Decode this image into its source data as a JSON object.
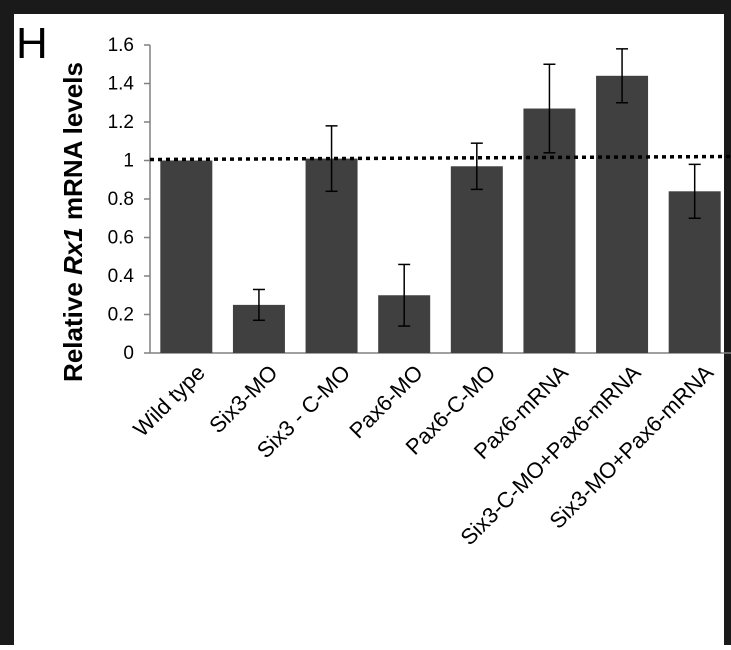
{
  "panel": {
    "letter": "H"
  },
  "chart_data": {
    "type": "bar",
    "title": "",
    "xlabel": "",
    "ylabel_parts": [
      "Relative ",
      "Rx1",
      " mRNA levels"
    ],
    "categories": [
      "Wild type",
      "Six3-MO",
      "Six3 - C-MO",
      "Pax6-MO",
      "Pax6-C-MO",
      "Pax6-mRNA",
      "Six3-C-MO+Pax6-mRNA",
      "Six3-MO+Pax6-mRNA"
    ],
    "series": [
      {
        "values": [
          1.0,
          0.25,
          1.01,
          0.3,
          0.97,
          1.27,
          1.44,
          0.84
        ],
        "error": [
          0.0,
          0.08,
          0.17,
          0.16,
          0.12,
          0.23,
          0.14,
          0.14
        ],
        "color": "#404040"
      }
    ],
    "reference_line": {
      "value": 1.0,
      "style": "dotted",
      "color": "#000000"
    },
    "ylim": [
      0,
      1.6
    ],
    "yticks": [
      "0",
      "0.2",
      "0.4",
      "0.6",
      "0.8",
      "1",
      "1.2",
      "1.4",
      "1.6"
    ],
    "grid": false,
    "legend": "none"
  }
}
